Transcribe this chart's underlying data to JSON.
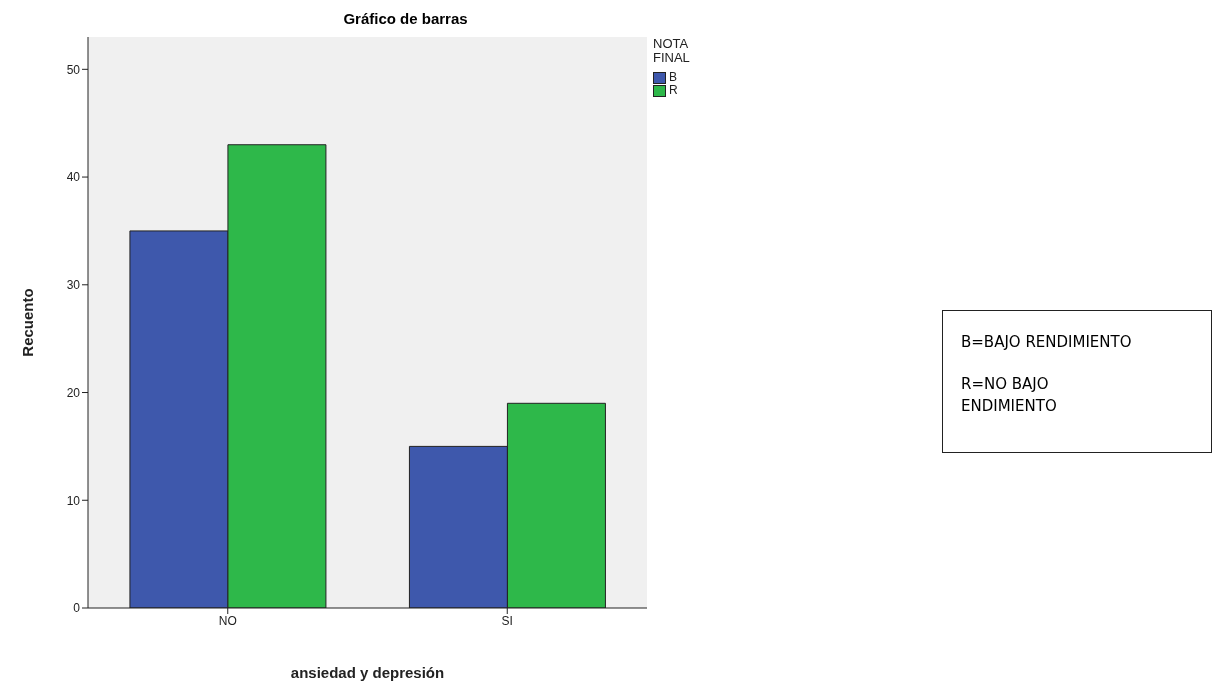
{
  "chart_data": {
    "type": "bar",
    "title": "Gráfico de barras",
    "xlabel": "ansiedad y depresión",
    "ylabel": "Recuento",
    "legend_title": "NOTA FINAL",
    "legend": "top right",
    "categories": [
      "NO",
      "SI"
    ],
    "series": [
      {
        "name": "B",
        "color": "#3e58ac",
        "values": [
          35,
          15
        ]
      },
      {
        "name": "R",
        "color": "#2eb84a",
        "values": [
          43,
          19
        ]
      }
    ],
    "ylim": [
      0,
      53
    ],
    "yticks": [
      0,
      10,
      20,
      30,
      40,
      50
    ],
    "annotations": [
      "B=BAJO RENDIMIENTO",
      "R=NO BAJO",
      "ENDIMIENTO"
    ]
  }
}
